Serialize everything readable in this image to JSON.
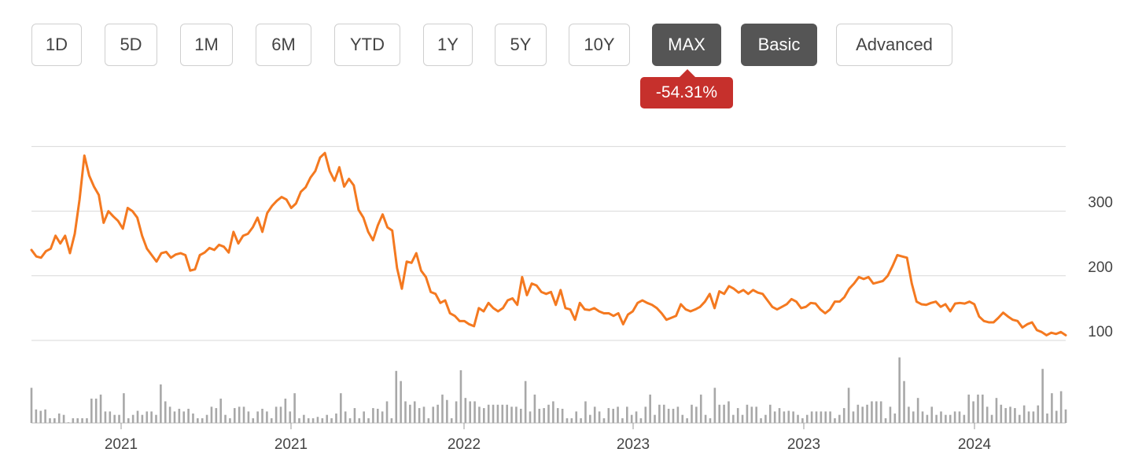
{
  "toolbar": {
    "buttons": [
      {
        "label": "1D",
        "active": false
      },
      {
        "label": "5D",
        "active": false
      },
      {
        "label": "1M",
        "active": false
      },
      {
        "label": "6M",
        "active": false
      },
      {
        "label": "YTD",
        "active": false
      },
      {
        "label": "1Y",
        "active": false
      },
      {
        "label": "5Y",
        "active": false
      },
      {
        "label": "10Y",
        "active": false
      },
      {
        "label": "MAX",
        "active": true
      },
      {
        "label": "Basic",
        "active": true
      },
      {
        "label": "Advanced",
        "active": false
      }
    ]
  },
  "change_badge": {
    "text": "-54.31%",
    "color": "#c6302c"
  },
  "chart_data": {
    "type": "line",
    "title": "",
    "xlabel": "",
    "ylabel": "",
    "ylim": [
      100,
      400
    ],
    "yticks": [
      100,
      200,
      300
    ],
    "xtick_labels": [
      "2021",
      "2021",
      "2022",
      "2023",
      "2023",
      "2024"
    ],
    "line_color": "#f47920",
    "volume_color": "#a8a8a8",
    "grid": true,
    "price": [
      240,
      230,
      228,
      238,
      242,
      262,
      250,
      262,
      235,
      265,
      318,
      386,
      355,
      338,
      325,
      282,
      300,
      292,
      285,
      273,
      305,
      300,
      290,
      262,
      242,
      232,
      222,
      235,
      237,
      228,
      233,
      235,
      232,
      208,
      210,
      232,
      236,
      243,
      240,
      248,
      245,
      236,
      268,
      250,
      262,
      265,
      275,
      290,
      268,
      297,
      308,
      316,
      322,
      318,
      305,
      312,
      330,
      337,
      352,
      362,
      383,
      390,
      362,
      347,
      368,
      338,
      350,
      340,
      302,
      290,
      268,
      255,
      278,
      295,
      275,
      270,
      212,
      180,
      222,
      220,
      235,
      208,
      198,
      175,
      172,
      158,
      162,
      142,
      138,
      130,
      130,
      125,
      122,
      150,
      145,
      158,
      150,
      145,
      150,
      162,
      165,
      155,
      198,
      170,
      188,
      185,
      175,
      172,
      175,
      155,
      178,
      150,
      148,
      132,
      158,
      148,
      147,
      150,
      145,
      142,
      142,
      138,
      142,
      125,
      140,
      145,
      158,
      162,
      158,
      155,
      150,
      142,
      132,
      135,
      138,
      156,
      148,
      145,
      148,
      152,
      160,
      172,
      150,
      176,
      172,
      184,
      180,
      174,
      178,
      172,
      178,
      174,
      172,
      162,
      152,
      148,
      152,
      156,
      164,
      160,
      150,
      152,
      158,
      157,
      148,
      142,
      148,
      160,
      160,
      167,
      180,
      188,
      198,
      195,
      198,
      188,
      190,
      192,
      200,
      215,
      232,
      230,
      228,
      188,
      160,
      156,
      155,
      158,
      160,
      152,
      156,
      145,
      157,
      158,
      157,
      160,
      156,
      137,
      130,
      128,
      128,
      135,
      143,
      137,
      132,
      130,
      120,
      125,
      128,
      116,
      113,
      108,
      112,
      110,
      113,
      108
    ],
    "volume": [
      52,
      20,
      18,
      20,
      7,
      7,
      14,
      12,
      1,
      7,
      7,
      7,
      7,
      36,
      36,
      42,
      17,
      17,
      12,
      12,
      44,
      7,
      12,
      18,
      12,
      17,
      17,
      12,
      57,
      32,
      24,
      17,
      21,
      17,
      21,
      14,
      7,
      7,
      12,
      24,
      22,
      36,
      12,
      7,
      22,
      24,
      24,
      17,
      7,
      17,
      21,
      17,
      7,
      24,
      24,
      36,
      17,
      44,
      7,
      12,
      7,
      7,
      9,
      7,
      12,
      7,
      14,
      44,
      17,
      7,
      22,
      7,
      17,
      7,
      22,
      21,
      17,
      32,
      7,
      77,
      62,
      32,
      27,
      32,
      22,
      24,
      7,
      24,
      27,
      42,
      34,
      7,
      32,
      78,
      37,
      32,
      32,
      24,
      22,
      27,
      27,
      27,
      27,
      27,
      24,
      24,
      21,
      62,
      17,
      42,
      21,
      22,
      27,
      32,
      22,
      21,
      7,
      7,
      17,
      7,
      32,
      12,
      24,
      17,
      7,
      22,
      21,
      24,
      7,
      24,
      12,
      17,
      7,
      24,
      42,
      12,
      27,
      27,
      21,
      21,
      24,
      12,
      7,
      27,
      24,
      42,
      12,
      7,
      52,
      27,
      27,
      32,
      12,
      22,
      12,
      27,
      24,
      24,
      7,
      12,
      27,
      17,
      22,
      17,
      18,
      17,
      12,
      7,
      12,
      17,
      17,
      17,
      17,
      17,
      7,
      12,
      22,
      52,
      17,
      27,
      24,
      27,
      32,
      32,
      32,
      7,
      24,
      14,
      97,
      62,
      24,
      17,
      37,
      17,
      12,
      24,
      12,
      17,
      12,
      12,
      17,
      17,
      12,
      42,
      32,
      42,
      42,
      24,
      12,
      37,
      27,
      22,
      24,
      22,
      12,
      26,
      17,
      17,
      26,
      80,
      14,
      44,
      18,
      47,
      20
    ]
  }
}
